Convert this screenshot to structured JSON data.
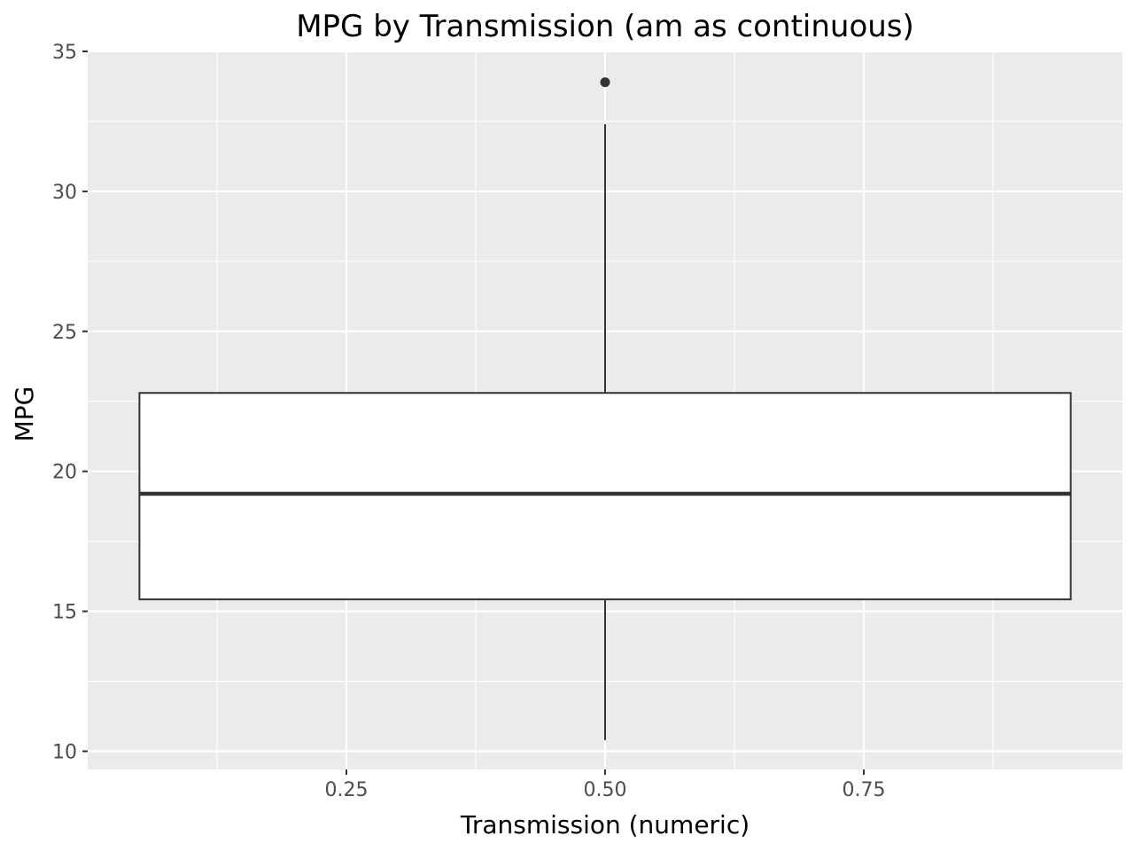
{
  "chart_data": {
    "type": "boxplot",
    "title": "MPG by Transmission (am as continuous)",
    "xlabel": "Transmission (numeric)",
    "ylabel": "MPG",
    "xlim": [
      0.0,
      1.0
    ],
    "ylim": [
      9.35,
      35.0
    ],
    "x_ticks": [
      0.25,
      0.5,
      0.75
    ],
    "x_tick_labels": [
      "0.25",
      "0.50",
      "0.75"
    ],
    "y_ticks": [
      10,
      15,
      20,
      25,
      30,
      35
    ],
    "y_tick_labels": [
      "10",
      "15",
      "20",
      "25",
      "30",
      "35"
    ],
    "grid": true,
    "box": {
      "x": 0.5,
      "x_range": [
        0.05,
        0.95
      ],
      "lower_whisker": 10.4,
      "q1": 15.425,
      "median": 19.2,
      "q3": 22.8,
      "upper_whisker": 32.4,
      "outliers": [
        33.9
      ]
    },
    "colors": {
      "panel_background": "#ebebeb",
      "grid_major": "#ffffff",
      "box_fill": "#ffffff",
      "box_line": "#333333",
      "tick_text": "#4d4d4d"
    }
  }
}
